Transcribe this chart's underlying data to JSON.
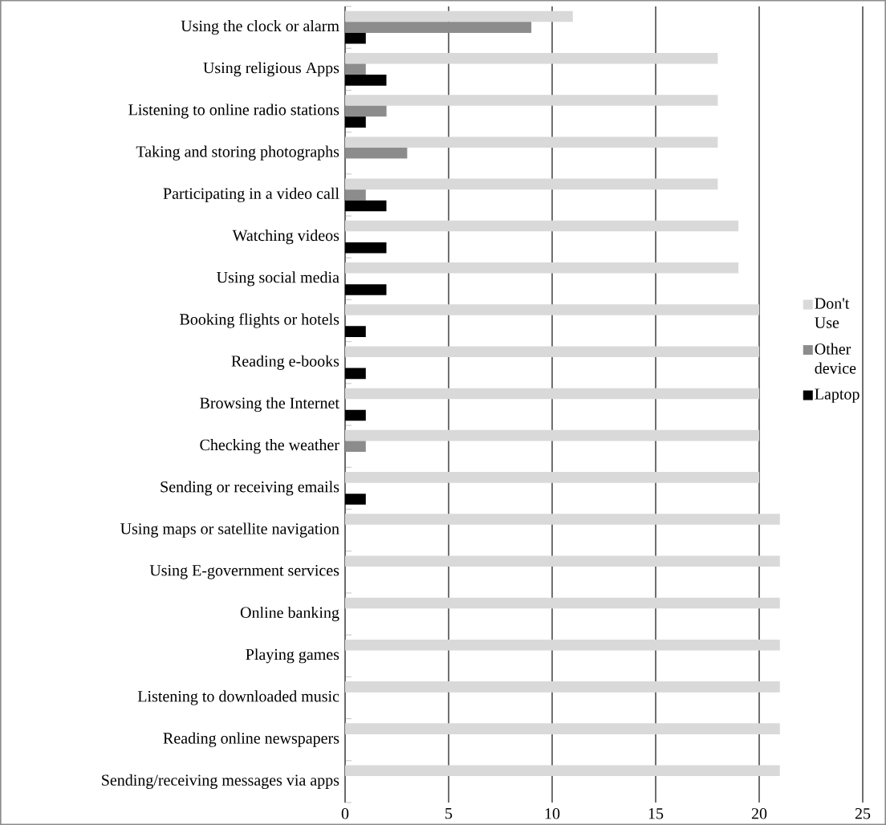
{
  "chart_data": {
    "type": "bar",
    "orientation": "horizontal",
    "categories": [
      "Using the clock or alarm",
      "Using religious Apps",
      "Listening to online radio stations",
      "Taking and storing photographs",
      "Participating in a video call",
      "Watching videos",
      "Using social media",
      "Booking flights or hotels",
      "Reading e-books",
      "Browsing the Internet",
      "Checking the weather",
      "Sending or receiving emails",
      "Using maps or satellite navigation",
      "Using E-government services",
      "Online banking",
      "Playing games",
      "Listening to downloaded music",
      "Reading online newspapers",
      "Sending/receiving messages via apps"
    ],
    "series": [
      {
        "name": "Don't Use",
        "color": "#d9d9d9",
        "values": [
          11,
          18,
          18,
          18,
          18,
          19,
          19,
          20,
          20,
          20,
          20,
          20,
          21,
          21,
          21,
          21,
          21,
          21,
          21
        ]
      },
      {
        "name": "Other device",
        "color": "#8c8c8c",
        "values": [
          9,
          1,
          2,
          3,
          1,
          0,
          0,
          0,
          0,
          0,
          1,
          0,
          0,
          0,
          0,
          0,
          0,
          0,
          0
        ]
      },
      {
        "name": "Laptop",
        "color": "#000000",
        "values": [
          1,
          2,
          1,
          0,
          2,
          2,
          2,
          1,
          1,
          1,
          0,
          1,
          0,
          0,
          0,
          0,
          0,
          0,
          0
        ]
      }
    ],
    "xlim": [
      0,
      25
    ],
    "xticks": [
      0,
      5,
      10,
      15,
      20,
      25
    ],
    "grid": "x",
    "legend": "right"
  }
}
